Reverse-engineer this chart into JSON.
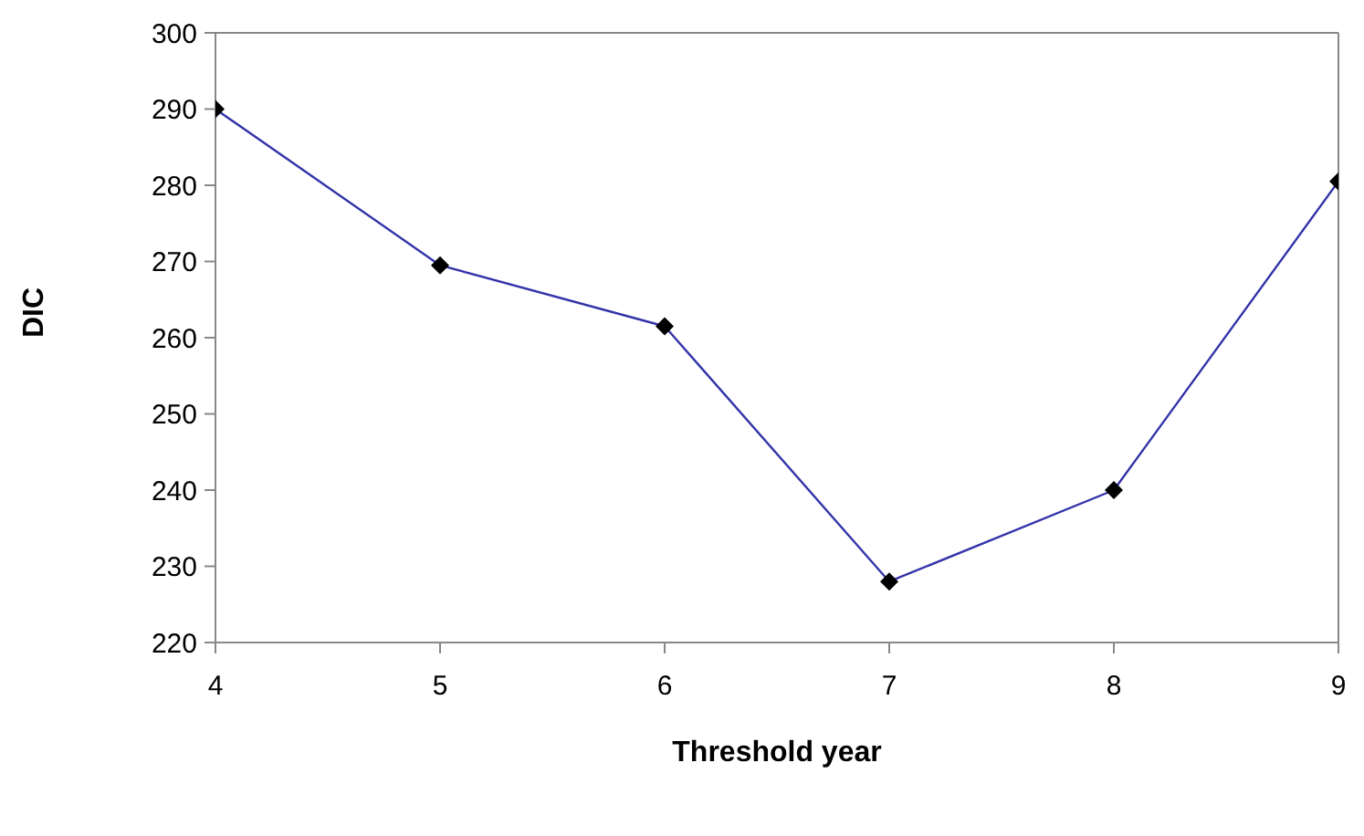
{
  "chart_data": {
    "type": "line",
    "xlabel": "Threshold year",
    "ylabel": "DIC",
    "x": [
      4,
      5,
      6,
      7,
      8,
      9
    ],
    "series": [
      {
        "color": "#3333aa",
        "values": [
          290,
          269.5,
          261.5,
          228,
          240,
          280.5
        ]
      }
    ],
    "xlim": [
      4,
      9
    ],
    "xticks": [
      4,
      5,
      6,
      7,
      8,
      9
    ],
    "ylim": [
      220,
      300
    ],
    "yticks": [
      220,
      230,
      240,
      250,
      260,
      270,
      280,
      290,
      300
    ],
    "marker": "diamond",
    "line_style": "solid",
    "grid": false,
    "legend": false
  }
}
